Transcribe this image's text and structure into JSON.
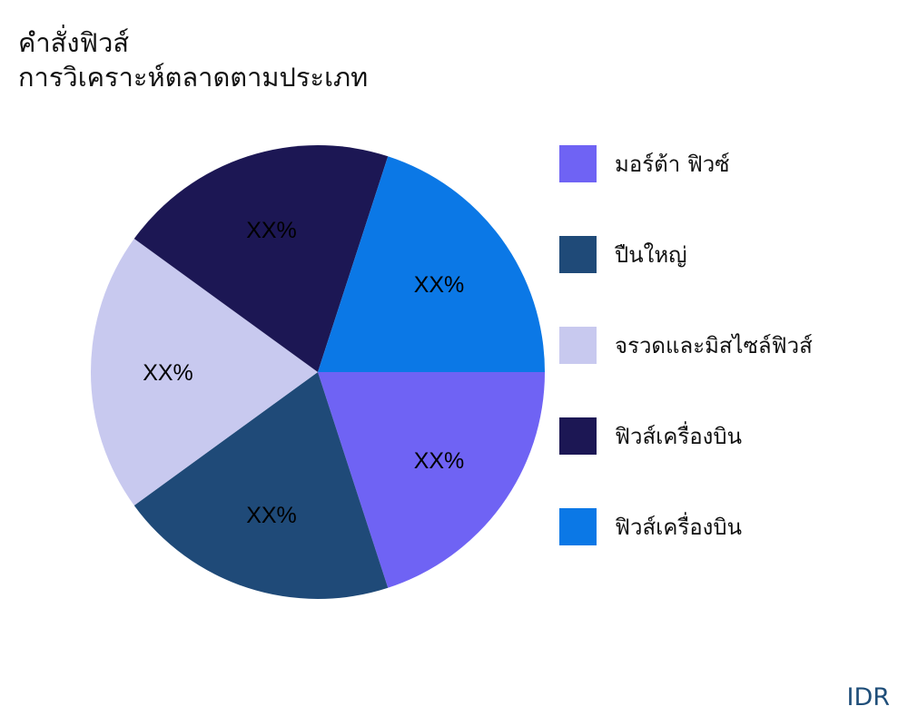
{
  "title": {
    "line1": "คำสั่งฟิวส์",
    "line2": "การวิเคราะห์ตลาดตามประเภท"
  },
  "chart_data": {
    "type": "pie",
    "categories": [
      "มอร์ต้า ฟิวซ์",
      "ปืนใหญ่",
      "จรวดและมิสไซล์ฟิวส์",
      "ฟิวส์เครื่องบิน",
      "ฟิวส์เครื่องบิน"
    ],
    "values": [
      20,
      20,
      20,
      20,
      20
    ],
    "data_labels": [
      "XX%",
      "XX%",
      "XX%",
      "XX%",
      "XX%"
    ],
    "colors": [
      "#6f63f4",
      "#1f4a78",
      "#c8c9ef",
      "#1c1754",
      "#0b78e6"
    ],
    "start_angle": "east, clockwise",
    "legend_placement": "right"
  },
  "brand": "IDR"
}
